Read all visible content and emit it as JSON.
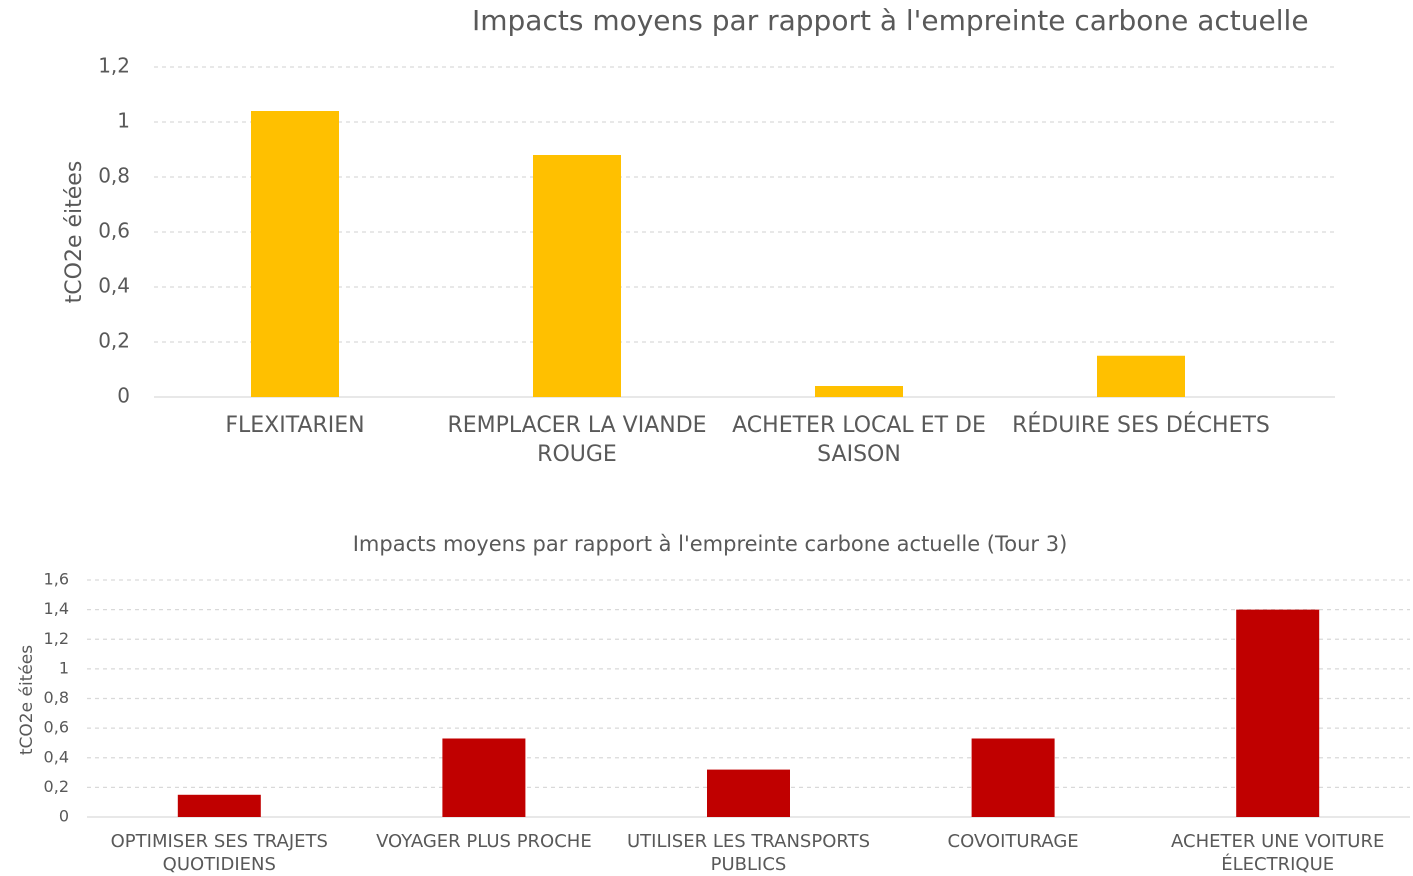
{
  "chart_data": [
    {
      "type": "bar",
      "title": "Impacts moyens par rapport à l'empreinte carbone actuelle",
      "y_label": "tCO2e éitées",
      "categories": [
        "FLEXITARIEN",
        "REMPLACER LA VIANDE ROUGE",
        "ACHETER LOCAL ET DE SAISON",
        "RÉDUIRE SES DÉCHETS"
      ],
      "values": [
        1.04,
        0.88,
        0.04,
        0.15
      ],
      "color": "#ffc000",
      "ylim": [
        0,
        1.2
      ],
      "yticks": [
        0,
        {
          "value": 0.2,
          "label": "0,2"
        },
        {
          "value": 0.4,
          "label": "0,4"
        },
        {
          "value": 0.6,
          "label": "0,6"
        },
        {
          "value": 0.8,
          "label": "0,8"
        },
        1,
        {
          "value": 1.2,
          "label": "1,2"
        }
      ],
      "grid": true
    },
    {
      "type": "bar",
      "title": "Impacts moyens par rapport à l'empreinte carbone actuelle (Tour 3)",
      "y_label": "tCO2e éitées",
      "categories": [
        "OPTIMISER SES TRAJETS QUOTIDIENS",
        "VOYAGER PLUS PROCHE",
        "UTILISER LES TRANSPORTS PUBLICS",
        "COVOITURAGE",
        "ACHETER UNE VOITURE ÉLECTRIQUE"
      ],
      "values": [
        0.15,
        0.53,
        0.32,
        0.53,
        1.4
      ],
      "color": "#c00000",
      "ylim": [
        0,
        1.6
      ],
      "yticks": [
        0,
        {
          "value": 0.2,
          "label": "0,2"
        },
        {
          "value": 0.4,
          "label": "0,4"
        },
        {
          "value": 0.6,
          "label": "0,6"
        },
        {
          "value": 0.8,
          "label": "0,8"
        },
        1,
        {
          "value": 1.2,
          "label": "1,2"
        },
        {
          "value": 1.4,
          "label": "1,4"
        },
        {
          "value": 1.6,
          "label": "1,6"
        }
      ],
      "grid": true
    }
  ]
}
